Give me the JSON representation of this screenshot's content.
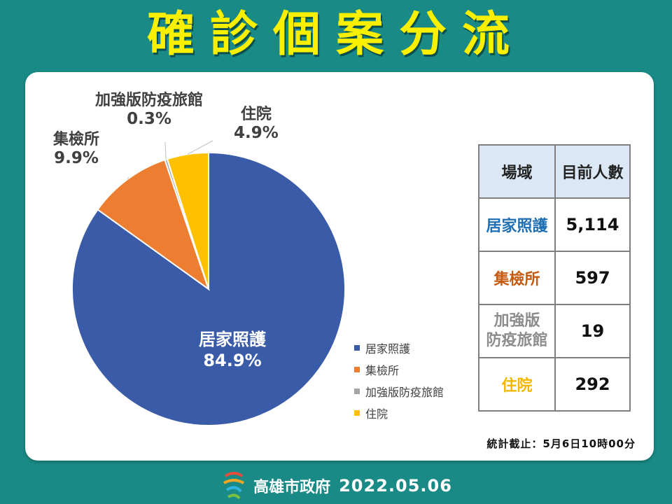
{
  "header": {
    "title": "確診個案分流"
  },
  "chart_data": {
    "type": "pie",
    "categories": [
      "居家照護",
      "集檢所",
      "加強版防疫旅館",
      "住院"
    ],
    "values": [
      84.9,
      9.9,
      0.3,
      4.9
    ],
    "value_labels": [
      "84.9%",
      "9.9%",
      "0.3%",
      "4.9%"
    ],
    "colors": [
      "#3a5ba8",
      "#ec7d31",
      "#a5a5a5",
      "#ffc000"
    ],
    "legend": "right",
    "legend_items": [
      "居家照護",
      "集檢所",
      "加強版防疫旅館",
      "住院"
    ]
  },
  "table": {
    "headers": [
      "場域",
      "目前人數"
    ],
    "rows": [
      {
        "place": "居家照護",
        "count": "5,114",
        "color": "#1f6fb4"
      },
      {
        "place": "集檢所",
        "count": "597",
        "color": "#c55a11"
      },
      {
        "place_line1": "加強版",
        "place_line2": "防疫旅館",
        "count": "19",
        "color": "#8c8c8c"
      },
      {
        "place": "住院",
        "count": "292",
        "color": "#f2b800"
      }
    ]
  },
  "stat_note": "統計截止：5月6日10時00分",
  "footer": {
    "org": "高雄市政府",
    "date": "2022.05.06"
  }
}
